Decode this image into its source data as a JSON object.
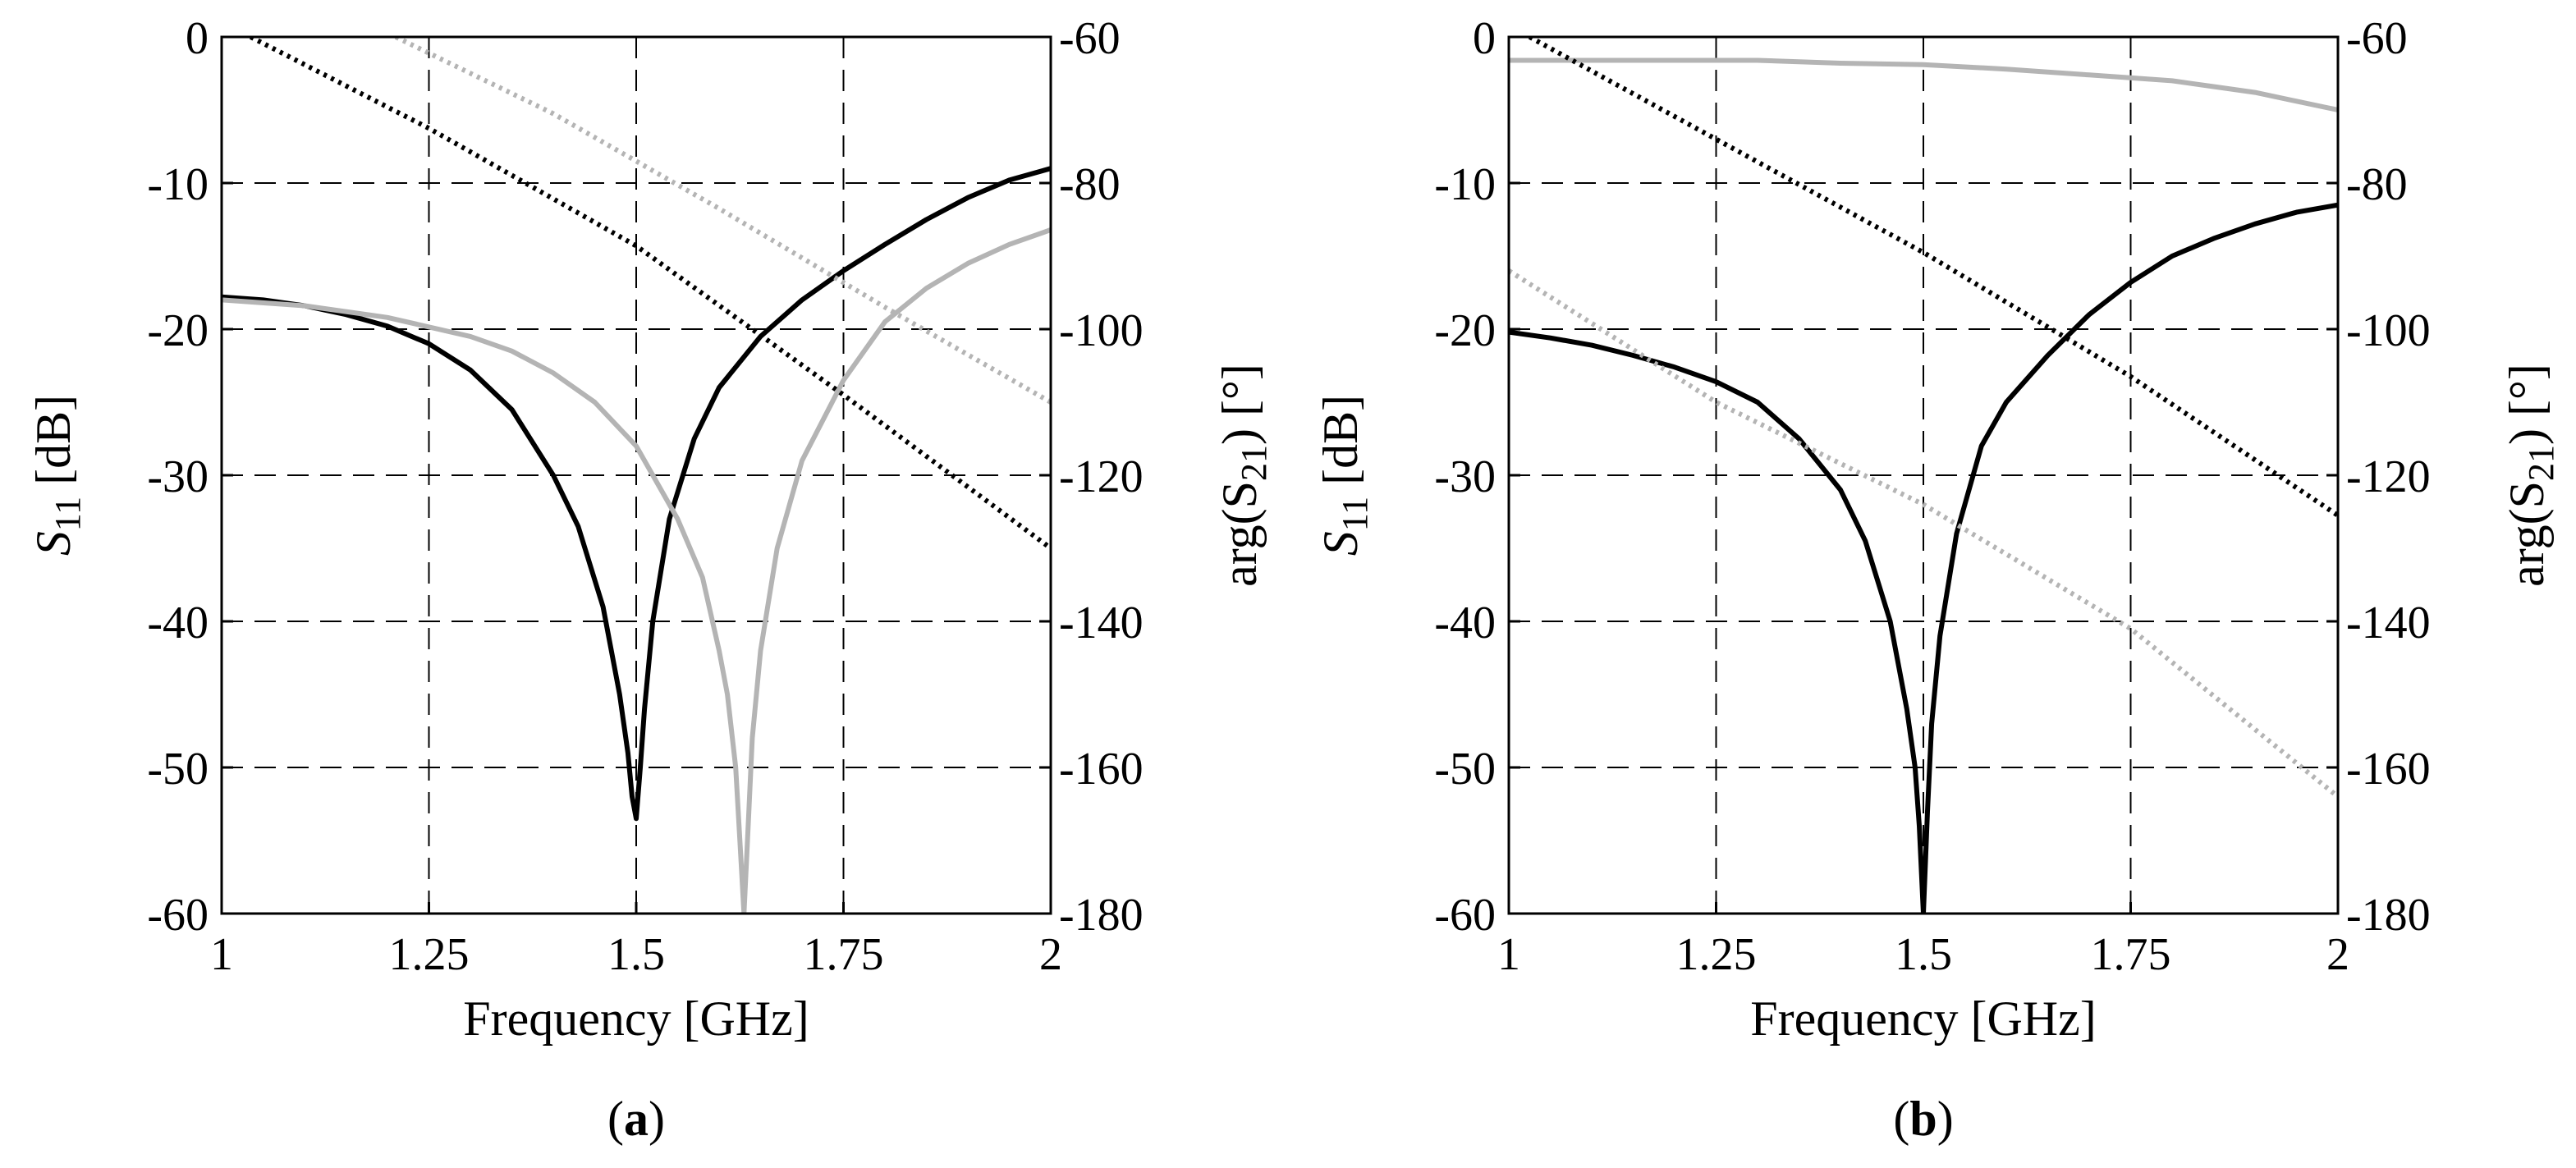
{
  "chart_data": [
    {
      "type": "line",
      "panel_label": "a",
      "xlabel": "Frequency [GHz]",
      "ylabel": "S11 [dB]",
      "ylabel_symbol": "S",
      "ylabel_sub": "11",
      "ylabel_unit": "[dB]",
      "y2label": "arg(S21) [°]",
      "y2label_pre": "arg(S",
      "y2label_sub": "21",
      "y2label_post": ") [°]",
      "xlim": [
        1,
        2
      ],
      "ylim": [
        -60,
        0
      ],
      "y2lim": [
        -180,
        -60
      ],
      "xticks": [
        "1",
        "1.25",
        "1.5",
        "1.75",
        "2"
      ],
      "yticks": [
        "-60",
        "-50",
        "-40",
        "-30",
        "-20",
        "-10",
        "0"
      ],
      "y2ticks": [
        "-180",
        "-160",
        "-140",
        "-120",
        "-100",
        "-80",
        "-60"
      ],
      "grid": true,
      "series": [
        {
          "color": "#000000",
          "style": "solid",
          "axis": "left",
          "x": [
            1.0,
            1.05,
            1.1,
            1.15,
            1.2,
            1.25,
            1.3,
            1.35,
            1.4,
            1.43,
            1.46,
            1.48,
            1.49,
            1.495,
            1.5,
            1.505,
            1.51,
            1.52,
            1.54,
            1.57,
            1.6,
            1.65,
            1.7,
            1.75,
            1.8,
            1.85,
            1.9,
            1.95,
            2.0
          ],
          "y": [
            -17.8,
            -18.0,
            -18.4,
            -19.0,
            -19.8,
            -21.0,
            -22.8,
            -25.5,
            -30.0,
            -33.5,
            -39.0,
            -45.0,
            -49.0,
            -52.0,
            -53.5,
            -50.0,
            -46.0,
            -40.0,
            -33.0,
            -27.5,
            -24.0,
            -20.5,
            -18.0,
            -16.0,
            -14.2,
            -12.5,
            -11.0,
            -9.8,
            -9.0
          ]
        },
        {
          "color": "#b4b4b4",
          "style": "solid",
          "axis": "left",
          "x": [
            1.0,
            1.1,
            1.2,
            1.3,
            1.35,
            1.4,
            1.45,
            1.5,
            1.55,
            1.58,
            1.6,
            1.61,
            1.62,
            1.625,
            1.63,
            1.635,
            1.64,
            1.65,
            1.67,
            1.7,
            1.75,
            1.8,
            1.85,
            1.9,
            1.95,
            2.0
          ],
          "y": [
            -18.0,
            -18.4,
            -19.2,
            -20.5,
            -21.5,
            -23.0,
            -25.0,
            -28.0,
            -33.0,
            -37.0,
            -42.0,
            -45.0,
            -50.0,
            -55.0,
            -60.0,
            -54.0,
            -48.0,
            -42.0,
            -35.0,
            -29.0,
            -23.5,
            -19.5,
            -17.2,
            -15.5,
            -14.2,
            -13.2
          ]
        },
        {
          "color": "#000000",
          "style": "dotted",
          "axis": "right",
          "x": [
            1.035,
            1.25,
            1.5,
            1.75,
            2.0
          ],
          "y": [
            -60.0,
            -72.5,
            -88.6,
            -109.0,
            -130.0
          ]
        },
        {
          "color": "#b4b4b4",
          "style": "dotted",
          "axis": "right",
          "x": [
            1.21,
            1.4,
            1.6,
            1.8,
            2.0
          ],
          "y": [
            -60.0,
            -70.5,
            -83.5,
            -97.0,
            -110.0
          ]
        }
      ]
    },
    {
      "type": "line",
      "panel_label": "b",
      "xlabel": "Frequency [GHz]",
      "ylabel": "S11 [dB]",
      "ylabel_symbol": "S",
      "ylabel_sub": "11",
      "ylabel_unit": "[dB]",
      "y2label": "arg(S21) [°]",
      "y2label_pre": "arg(S",
      "y2label_sub": "21",
      "y2label_post": ") [°]",
      "xlim": [
        1,
        2
      ],
      "ylim": [
        -60,
        0
      ],
      "y2lim": [
        -180,
        -60
      ],
      "xticks": [
        "1",
        "1.25",
        "1.5",
        "1.75",
        "2"
      ],
      "yticks": [
        "-60",
        "-50",
        "-40",
        "-30",
        "-20",
        "-10",
        "0"
      ],
      "y2ticks": [
        "-180",
        "-160",
        "-140",
        "-120",
        "-100",
        "-80",
        "-60"
      ],
      "grid": true,
      "series": [
        {
          "color": "#000000",
          "style": "solid",
          "axis": "left",
          "x": [
            1.0,
            1.05,
            1.1,
            1.15,
            1.2,
            1.25,
            1.3,
            1.35,
            1.4,
            1.43,
            1.46,
            1.48,
            1.49,
            1.495,
            1.5,
            1.505,
            1.51,
            1.52,
            1.54,
            1.57,
            1.6,
            1.65,
            1.7,
            1.75,
            1.8,
            1.85,
            1.9,
            1.95,
            2.0
          ],
          "y": [
            -20.2,
            -20.6,
            -21.1,
            -21.8,
            -22.6,
            -23.6,
            -25.0,
            -27.5,
            -31.0,
            -34.5,
            -40.0,
            -46.0,
            -50.0,
            -54.0,
            -60.0,
            -53.0,
            -47.0,
            -41.0,
            -34.0,
            -28.0,
            -25.0,
            -21.8,
            -19.0,
            -16.8,
            -15.0,
            -13.8,
            -12.8,
            -12.0,
            -11.5
          ]
        },
        {
          "color": "#b4b4b4",
          "style": "solid",
          "axis": "left",
          "x": [
            1.0,
            1.1,
            1.2,
            1.3,
            1.4,
            1.5,
            1.6,
            1.7,
            1.8,
            1.85,
            1.9,
            1.95,
            2.0
          ],
          "y": [
            -1.6,
            -1.6,
            -1.6,
            -1.6,
            -1.8,
            -1.9,
            -2.2,
            -2.6,
            -3.0,
            -3.4,
            -3.8,
            -4.4,
            -5.0
          ]
        },
        {
          "color": "#000000",
          "style": "dotted",
          "axis": "right",
          "x": [
            1.025,
            1.25,
            1.5,
            1.75,
            2.0
          ],
          "y": [
            -60.0,
            -74.0,
            -89.5,
            -106.5,
            -125.5
          ]
        },
        {
          "color": "#b4b4b4",
          "style": "dotted",
          "axis": "right",
          "x": [
            1.0,
            1.25,
            1.5,
            1.75,
            2.0
          ],
          "y": [
            -92.0,
            -110.0,
            -124.0,
            -141.0,
            -164.0
          ]
        }
      ]
    }
  ]
}
